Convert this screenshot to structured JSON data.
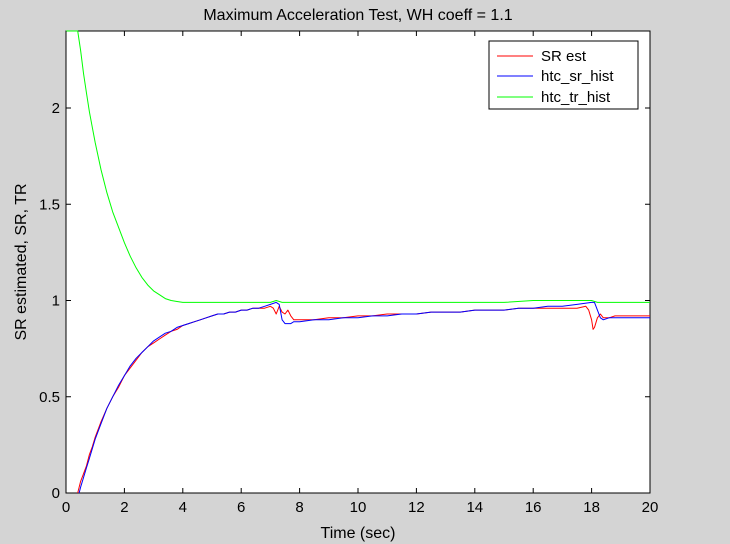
{
  "chart_data": {
    "type": "line",
    "title": "Maximum Acceleration Test, WH coeff = 1.1",
    "xlabel": "Time (sec)",
    "ylabel": "SR estimated, SR, TR",
    "xlim": [
      0,
      20
    ],
    "ylim": [
      0,
      2.4
    ],
    "xticks": [
      0,
      2,
      4,
      6,
      8,
      10,
      12,
      14,
      16,
      18,
      20
    ],
    "yticks": [
      0,
      0.5,
      1,
      1.5,
      2
    ],
    "xtick_labels": [
      "0",
      "2",
      "4",
      "6",
      "8",
      "10",
      "12",
      "14",
      "16",
      "18",
      "20"
    ],
    "ytick_labels": [
      "0",
      "0.5",
      "1",
      "1.5",
      "2"
    ],
    "grid": false,
    "legend_position": "top-right",
    "series": [
      {
        "name": "SR est",
        "color": "#ff0000",
        "x": [
          0.4,
          0.5,
          0.6,
          0.7,
          0.8,
          0.9,
          1.0,
          1.2,
          1.4,
          1.6,
          1.8,
          2.0,
          2.2,
          2.4,
          2.6,
          2.8,
          3.0,
          3.2,
          3.4,
          3.6,
          3.8,
          4.0,
          4.2,
          4.4,
          4.6,
          4.8,
          5.0,
          5.2,
          5.4,
          5.6,
          5.8,
          6.0,
          6.2,
          6.4,
          6.6,
          6.8,
          7.0,
          7.1,
          7.2,
          7.3,
          7.4,
          7.5,
          7.6,
          7.7,
          7.8,
          8.0,
          8.5,
          9.0,
          9.5,
          10.0,
          10.5,
          11.0,
          11.5,
          12.0,
          12.5,
          13.0,
          13.5,
          14.0,
          14.5,
          15.0,
          15.5,
          16.0,
          16.5,
          17.0,
          17.5,
          17.8,
          17.9,
          18.0,
          18.05,
          18.1,
          18.2,
          18.3,
          18.4,
          18.6,
          18.8,
          19.0,
          19.5,
          20.0
        ],
        "y": [
          0.0,
          0.06,
          0.1,
          0.14,
          0.2,
          0.24,
          0.29,
          0.37,
          0.44,
          0.5,
          0.55,
          0.61,
          0.65,
          0.69,
          0.73,
          0.76,
          0.78,
          0.8,
          0.82,
          0.84,
          0.85,
          0.87,
          0.88,
          0.89,
          0.9,
          0.91,
          0.92,
          0.93,
          0.93,
          0.94,
          0.94,
          0.95,
          0.95,
          0.96,
          0.96,
          0.96,
          0.97,
          0.96,
          0.93,
          0.97,
          0.94,
          0.93,
          0.95,
          0.92,
          0.9,
          0.9,
          0.9,
          0.91,
          0.91,
          0.92,
          0.92,
          0.93,
          0.93,
          0.93,
          0.94,
          0.94,
          0.94,
          0.95,
          0.95,
          0.95,
          0.96,
          0.96,
          0.96,
          0.96,
          0.96,
          0.97,
          0.95,
          0.9,
          0.85,
          0.86,
          0.91,
          0.93,
          0.91,
          0.91,
          0.92,
          0.92,
          0.92,
          0.92
        ]
      },
      {
        "name": "htc_sr_hist",
        "color": "#0000ff",
        "x": [
          0.45,
          0.5,
          0.6,
          0.7,
          0.8,
          0.9,
          1.0,
          1.2,
          1.4,
          1.6,
          1.8,
          2.0,
          2.2,
          2.4,
          2.6,
          2.8,
          3.0,
          3.2,
          3.4,
          3.6,
          3.8,
          4.0,
          4.2,
          4.4,
          4.6,
          4.8,
          5.0,
          5.2,
          5.4,
          5.6,
          5.8,
          6.0,
          6.2,
          6.4,
          6.6,
          6.8,
          7.0,
          7.2,
          7.3,
          7.4,
          7.5,
          7.6,
          7.7,
          7.8,
          8.0,
          8.5,
          9.0,
          9.5,
          10.0,
          10.5,
          11.0,
          11.5,
          12.0,
          12.5,
          13.0,
          13.5,
          14.0,
          14.5,
          15.0,
          15.5,
          16.0,
          16.5,
          17.0,
          17.5,
          18.0,
          18.1,
          18.2,
          18.3,
          18.4,
          18.6,
          18.8,
          19.0,
          19.5,
          20.0
        ],
        "y": [
          0.0,
          0.03,
          0.08,
          0.13,
          0.18,
          0.23,
          0.28,
          0.36,
          0.44,
          0.5,
          0.56,
          0.61,
          0.66,
          0.7,
          0.73,
          0.76,
          0.79,
          0.81,
          0.83,
          0.84,
          0.86,
          0.87,
          0.88,
          0.89,
          0.9,
          0.91,
          0.92,
          0.93,
          0.93,
          0.94,
          0.94,
          0.95,
          0.95,
          0.96,
          0.96,
          0.97,
          0.98,
          0.99,
          0.98,
          0.9,
          0.88,
          0.88,
          0.88,
          0.89,
          0.89,
          0.9,
          0.9,
          0.91,
          0.91,
          0.92,
          0.92,
          0.93,
          0.93,
          0.94,
          0.94,
          0.94,
          0.95,
          0.95,
          0.95,
          0.96,
          0.96,
          0.97,
          0.97,
          0.98,
          0.99,
          0.99,
          0.95,
          0.91,
          0.9,
          0.91,
          0.91,
          0.91,
          0.91,
          0.91
        ]
      },
      {
        "name": "htc_tr_hist",
        "color": "#00ff00",
        "x": [
          0.0,
          0.4,
          0.5,
          0.6,
          0.7,
          0.8,
          0.9,
          1.0,
          1.2,
          1.4,
          1.6,
          1.8,
          2.0,
          2.2,
          2.4,
          2.6,
          2.8,
          3.0,
          3.2,
          3.4,
          3.6,
          3.8,
          4.0,
          4.5,
          5.0,
          5.5,
          6.0,
          6.5,
          7.0,
          7.2,
          7.4,
          7.6,
          8.0,
          9.0,
          10.0,
          11.0,
          12.0,
          13.0,
          14.0,
          15.0,
          16.0,
          17.0,
          18.0,
          18.2,
          18.4,
          19.0,
          20.0
        ],
        "y": [
          2.4,
          2.4,
          2.3,
          2.18,
          2.08,
          1.98,
          1.9,
          1.82,
          1.68,
          1.56,
          1.46,
          1.38,
          1.3,
          1.23,
          1.17,
          1.12,
          1.08,
          1.05,
          1.03,
          1.01,
          1.0,
          0.995,
          0.99,
          0.99,
          0.99,
          0.99,
          0.99,
          0.99,
          0.99,
          1.0,
          0.99,
          0.99,
          0.99,
          0.99,
          0.99,
          0.99,
          0.99,
          0.99,
          0.99,
          0.99,
          1.0,
          1.0,
          1.0,
          0.99,
          0.99,
          0.99,
          0.99
        ]
      }
    ]
  }
}
